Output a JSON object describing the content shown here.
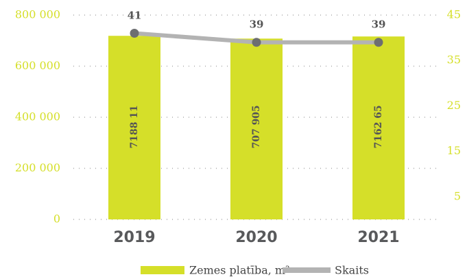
{
  "chart_data": {
    "type": "bar",
    "categories": [
      "2019",
      "2020",
      "2021"
    ],
    "series": [
      {
        "name": "Zemes platība, m²",
        "color": "#d5df29",
        "values": [
          718811,
          707905,
          716265
        ],
        "value_labels": [
          "7188 11",
          "707 905",
          "7162 65"
        ]
      },
      {
        "name": "Skaits",
        "type": "line",
        "axis": "y2",
        "color": "#b3b3b3",
        "marker_color": "#6d6e71",
        "values": [
          41,
          39,
          39
        ]
      }
    ],
    "ylim": [
      0,
      800000
    ],
    "yticks": [
      0,
      {
        "value": 200000,
        "label": "200 000"
      },
      {
        "value": 400000,
        "label": "400 000"
      },
      {
        "value": 600000,
        "label": "600 000"
      },
      {
        "value": 800000,
        "label": "800 000"
      }
    ],
    "y2lim": [
      0,
      45
    ],
    "y2ticks": [
      5,
      15,
      25,
      35,
      45
    ],
    "grid": true,
    "legend": "bottom"
  }
}
